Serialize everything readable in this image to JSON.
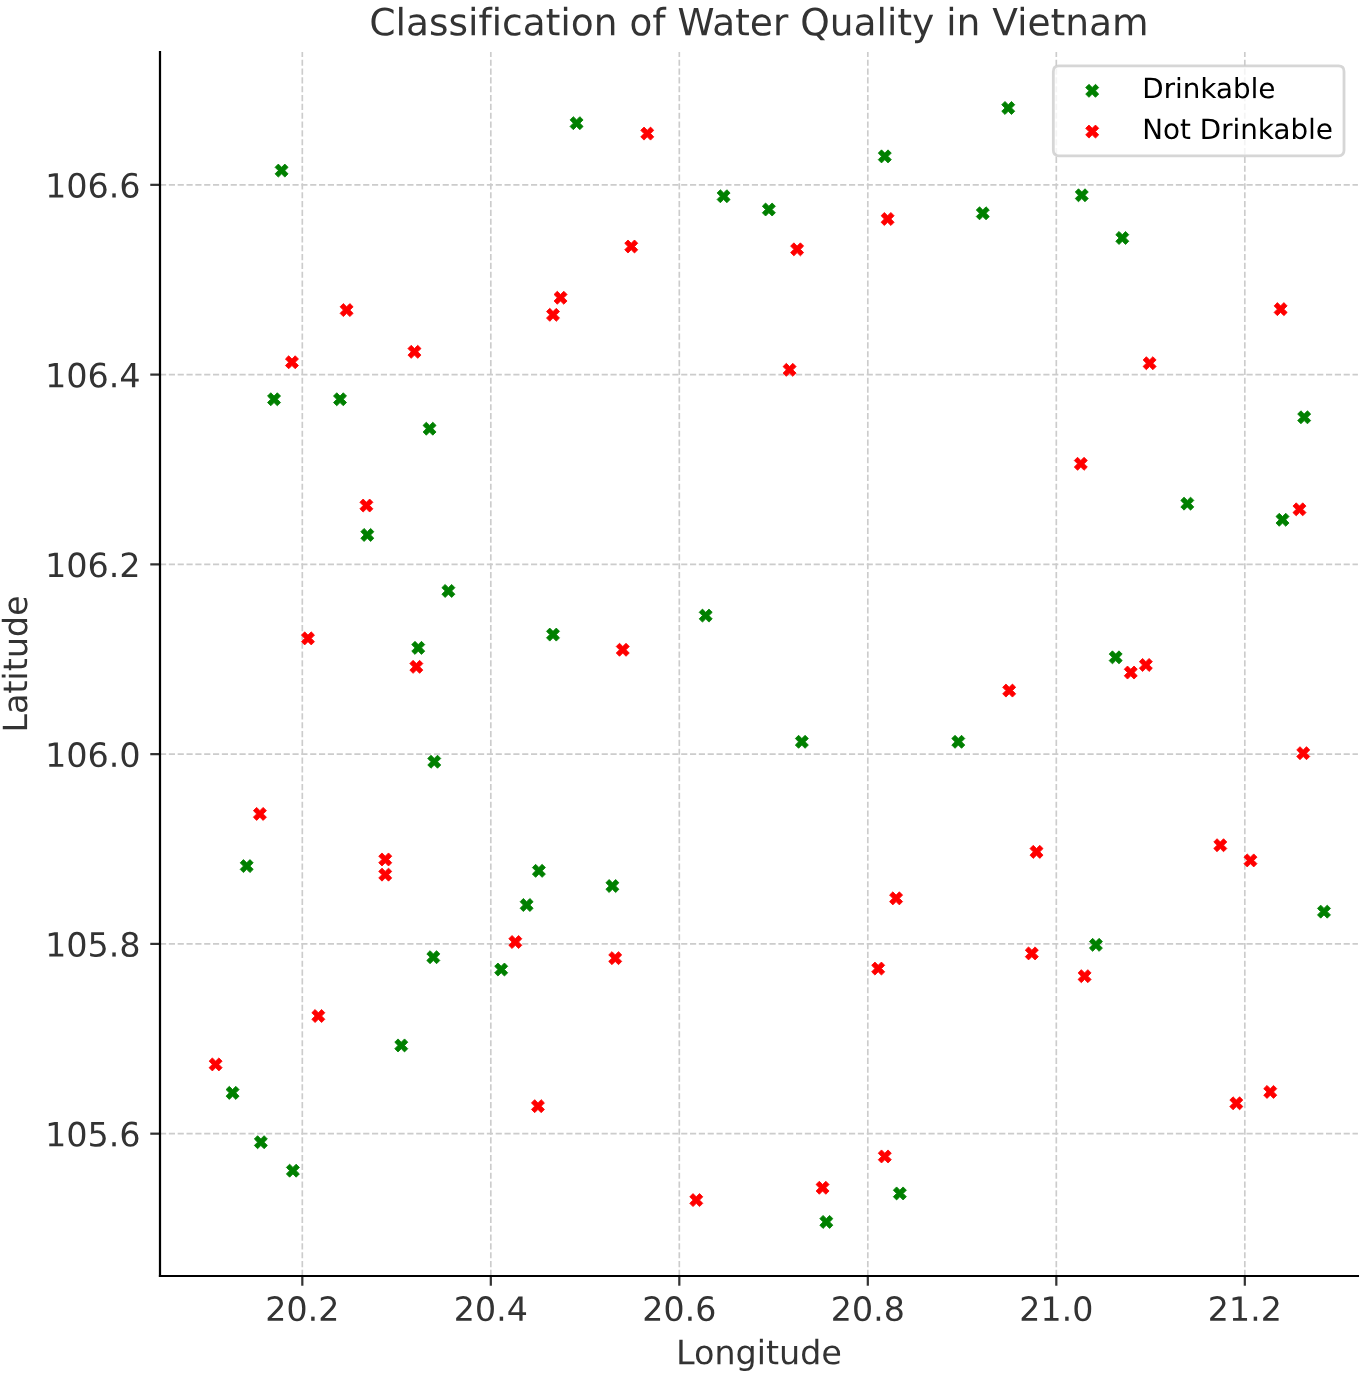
{
  "chart_data": {
    "type": "scatter",
    "title": "Classification of Water Quality in Vietnam",
    "xlabel": "Longitude",
    "ylabel": "Latitude",
    "xlim": [
      20.049,
      21.32
    ],
    "ylim": [
      105.45,
      106.74
    ],
    "xticks": [
      20.2,
      20.4,
      20.6,
      20.8,
      {
        "value": 21,
        "label": "21.0"
      },
      21.2
    ],
    "yticks": [
      105.6,
      105.8,
      {
        "value": 106,
        "label": "106.0"
      },
      106.2,
      106.4,
      106.6
    ],
    "grid": true,
    "legend": "top right",
    "marker": "cross",
    "series": [
      {
        "name": "Drinkable",
        "color": "#008000",
        "x": [
          20.178,
          20.491,
          20.647,
          20.17,
          20.24,
          20.335,
          20.269,
          20.355,
          20.466,
          20.628,
          20.323,
          20.949,
          20.818,
          20.695,
          20.922,
          21.027,
          21.07,
          21.263,
          21.139,
          21.24,
          21.063,
          20.34,
          20.141,
          20.451,
          20.529,
          20.438,
          20.339,
          20.411,
          20.305,
          20.126,
          20.156,
          20.19,
          20.73,
          20.896,
          21.284,
          21.042,
          20.834,
          20.756
        ],
        "values": [
          106.615,
          106.665,
          106.588,
          106.374,
          106.374,
          106.343,
          106.231,
          106.172,
          106.126,
          106.146,
          106.112,
          106.681,
          106.63,
          106.574,
          106.57,
          106.589,
          106.544,
          106.355,
          106.264,
          106.247,
          106.102,
          105.992,
          105.882,
          105.877,
          105.861,
          105.841,
          105.786,
          105.773,
          105.693,
          105.643,
          105.591,
          105.561,
          106.013,
          106.013,
          105.834,
          105.799,
          105.537,
          105.507
        ]
      },
      {
        "name": "Not Drinkable",
        "color": "#ff0000",
        "x": [
          20.566,
          20.549,
          20.474,
          20.466,
          20.247,
          20.319,
          20.189,
          20.268,
          20.206,
          20.54,
          20.321,
          20.821,
          20.725,
          20.717,
          21.238,
          21.099,
          21.026,
          21.258,
          21.079,
          21.095,
          20.155,
          20.288,
          20.288,
          20.426,
          20.532,
          20.217,
          20.108,
          20.45,
          20.618,
          20.95,
          21.262,
          20.979,
          21.174,
          21.206,
          20.83,
          20.811,
          20.974,
          21.03,
          21.191,
          21.227,
          20.818,
          20.752
        ],
        "values": [
          106.654,
          106.535,
          106.481,
          106.463,
          106.468,
          106.424,
          106.413,
          106.262,
          106.122,
          106.11,
          106.092,
          106.564,
          106.532,
          106.405,
          106.469,
          106.412,
          106.306,
          106.258,
          106.086,
          106.094,
          105.937,
          105.889,
          105.873,
          105.802,
          105.785,
          105.724,
          105.673,
          105.629,
          105.53,
          106.067,
          106.001,
          105.897,
          105.904,
          105.888,
          105.848,
          105.774,
          105.79,
          105.766,
          105.632,
          105.644,
          105.576,
          105.543
        ]
      }
    ]
  }
}
